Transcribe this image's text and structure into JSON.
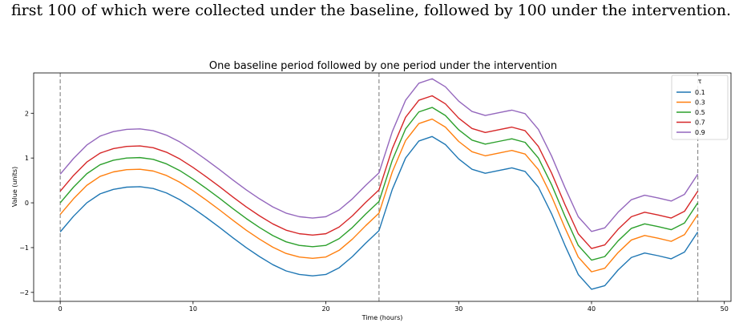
{
  "caption": "first 100 of which were collected under the baseline, followed by 100 under the intervention.",
  "chart_data": {
    "type": "line",
    "title": "One baseline period followed by one period under the intervention",
    "xlabel": "Time (hours)",
    "ylabel": "Value (units)",
    "xlim": [
      -2,
      50.5
    ],
    "ylim": [
      -2.2,
      2.9
    ],
    "xticks": [
      0,
      10,
      20,
      30,
      40,
      50
    ],
    "yticks": [
      -2,
      -1,
      0,
      1,
      2
    ],
    "grid": false,
    "vlines": [
      0,
      24,
      48
    ],
    "legend": {
      "title": "τ",
      "placement": "top-right"
    },
    "x": [
      0,
      1,
      2,
      3,
      4,
      5,
      6,
      7,
      8,
      9,
      10,
      11,
      12,
      13,
      14,
      15,
      16,
      17,
      18,
      19,
      20,
      21,
      22,
      23,
      24,
      25,
      26,
      27,
      28,
      29,
      30,
      31,
      32,
      33,
      34,
      35,
      36,
      37,
      38,
      39,
      40,
      41,
      42,
      43,
      44,
      45,
      46,
      47,
      48
    ],
    "series": [
      {
        "name": "0.1",
        "color": "#1f77b4",
        "values": [
          -0.65,
          -0.3,
          0.0,
          0.2,
          0.3,
          0.35,
          0.36,
          0.32,
          0.22,
          0.07,
          -0.12,
          -0.33,
          -0.55,
          -0.78,
          -1.0,
          -1.2,
          -1.38,
          -1.52,
          -1.6,
          -1.63,
          -1.6,
          -1.45,
          -1.2,
          -0.9,
          -0.62,
          0.3,
          1.0,
          1.38,
          1.48,
          1.3,
          0.98,
          0.75,
          0.66,
          0.72,
          0.78,
          0.7,
          0.35,
          -0.25,
          -0.95,
          -1.6,
          -1.93,
          -1.85,
          -1.5,
          -1.22,
          -1.12,
          -1.18,
          -1.25,
          -1.1,
          -0.65
        ]
      },
      {
        "name": "0.3",
        "color": "#ff7f0e",
        "values": [
          -0.26,
          0.09,
          0.39,
          0.59,
          0.69,
          0.74,
          0.75,
          0.71,
          0.61,
          0.46,
          0.27,
          0.06,
          -0.16,
          -0.39,
          -0.61,
          -0.81,
          -0.99,
          -1.13,
          -1.21,
          -1.24,
          -1.21,
          -1.06,
          -0.81,
          -0.51,
          -0.23,
          0.69,
          1.39,
          1.77,
          1.87,
          1.69,
          1.37,
          1.14,
          1.05,
          1.11,
          1.17,
          1.09,
          0.74,
          0.14,
          -0.56,
          -1.21,
          -1.54,
          -1.46,
          -1.11,
          -0.83,
          -0.73,
          -0.79,
          -0.86,
          -0.71,
          -0.26
        ]
      },
      {
        "name": "0.5",
        "color": "#2ca02c",
        "values": [
          0.0,
          0.35,
          0.65,
          0.85,
          0.95,
          1.0,
          1.01,
          0.97,
          0.87,
          0.72,
          0.53,
          0.32,
          0.1,
          -0.13,
          -0.35,
          -0.55,
          -0.73,
          -0.87,
          -0.95,
          -0.98,
          -0.95,
          -0.8,
          -0.55,
          -0.25,
          0.03,
          0.95,
          1.65,
          2.03,
          2.13,
          1.95,
          1.63,
          1.4,
          1.31,
          1.37,
          1.43,
          1.35,
          1.0,
          0.4,
          -0.3,
          -0.95,
          -1.28,
          -1.2,
          -0.85,
          -0.57,
          -0.47,
          -0.53,
          -0.6,
          -0.45,
          0.0
        ]
      },
      {
        "name": "0.7",
        "color": "#d62728",
        "values": [
          0.26,
          0.61,
          0.91,
          1.11,
          1.21,
          1.26,
          1.27,
          1.23,
          1.13,
          0.98,
          0.79,
          0.58,
          0.36,
          0.13,
          -0.09,
          -0.29,
          -0.47,
          -0.61,
          -0.69,
          -0.72,
          -0.69,
          -0.54,
          -0.29,
          0.01,
          0.29,
          1.21,
          1.91,
          2.29,
          2.39,
          2.21,
          1.89,
          1.66,
          1.57,
          1.63,
          1.69,
          1.61,
          1.26,
          0.66,
          -0.04,
          -0.69,
          -1.02,
          -0.94,
          -0.59,
          -0.31,
          -0.21,
          -0.27,
          -0.34,
          -0.19,
          0.26
        ]
      },
      {
        "name": "0.9",
        "color": "#9467bd",
        "values": [
          0.64,
          0.99,
          1.29,
          1.49,
          1.59,
          1.64,
          1.65,
          1.61,
          1.51,
          1.36,
          1.17,
          0.96,
          0.74,
          0.51,
          0.29,
          0.09,
          -0.09,
          -0.23,
          -0.31,
          -0.34,
          -0.31,
          -0.16,
          0.09,
          0.39,
          0.67,
          1.59,
          2.29,
          2.67,
          2.77,
          2.59,
          2.27,
          2.04,
          1.95,
          2.01,
          2.07,
          1.99,
          1.64,
          1.04,
          0.34,
          -0.31,
          -0.64,
          -0.56,
          -0.21,
          0.07,
          0.17,
          0.11,
          0.04,
          0.19,
          0.64
        ]
      }
    ]
  }
}
